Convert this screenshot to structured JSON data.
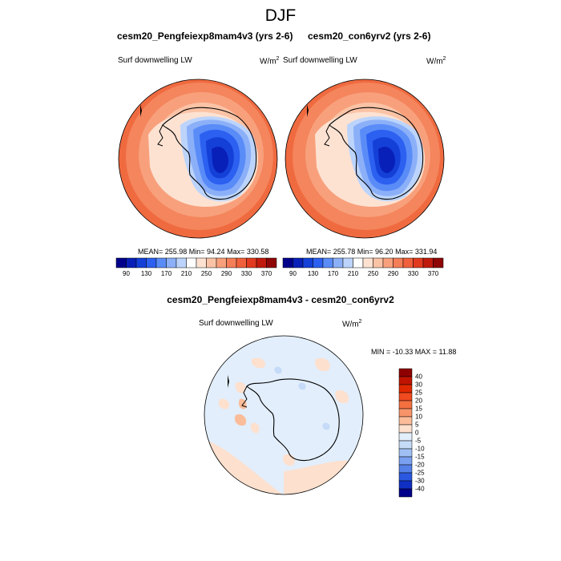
{
  "season_title": "DJF",
  "panels": {
    "left": {
      "title": "cesm20_Pengfeiexp8mam4v3 (yrs 2-6)",
      "variable": "Surf downwelling LW",
      "units_base": "W/m",
      "units_exp": "2",
      "stats": "MEAN= 255.98  Min=  94.24  Max= 330.58"
    },
    "right": {
      "title": "cesm20_con6yrv2 (yrs 2-6)",
      "variable": "Surf downwelling LW",
      "units_base": "W/m",
      "units_exp": "2",
      "stats": "MEAN= 255.78  Min=  96.20  Max= 331.94"
    },
    "diff": {
      "title": "cesm20_Pengfeiexp8mam4v3 - cesm20_con6yrv2",
      "variable": "Surf downwelling LW",
      "units_base": "W/m",
      "units_exp": "2",
      "stats": "MIN = -10.33 MAX =  11.88"
    }
  },
  "colorbar_abs": {
    "labels": [
      "90",
      "130",
      "170",
      "210",
      "250",
      "290",
      "330",
      "370"
    ],
    "colors": [
      "#00008a",
      "#0820b8",
      "#1440d8",
      "#2c60f0",
      "#5a8cf8",
      "#8cb0f8",
      "#bcd4fb",
      "#ffffff",
      "#fde2d2",
      "#fbc3a6",
      "#f8a07c",
      "#f47e58",
      "#f0603c",
      "#e23a20",
      "#c01a0c",
      "#8e0606"
    ]
  },
  "colorbar_diff": {
    "labels": [
      "40",
      "30",
      "25",
      "20",
      "15",
      "10",
      "5",
      "0",
      "-5",
      "-10",
      "-15",
      "-20",
      "-25",
      "-30",
      "-40"
    ],
    "colors": [
      "#8e0000",
      "#c01400",
      "#e02800",
      "#f04a20",
      "#f47040",
      "#f8946a",
      "#fbbc9a",
      "#fde0ce",
      "#e2eefb",
      "#c6dbf8",
      "#a0c0f4",
      "#7aa0f0",
      "#5580e8",
      "#2a58e0",
      "#1030c4",
      "#00008a"
    ]
  }
}
